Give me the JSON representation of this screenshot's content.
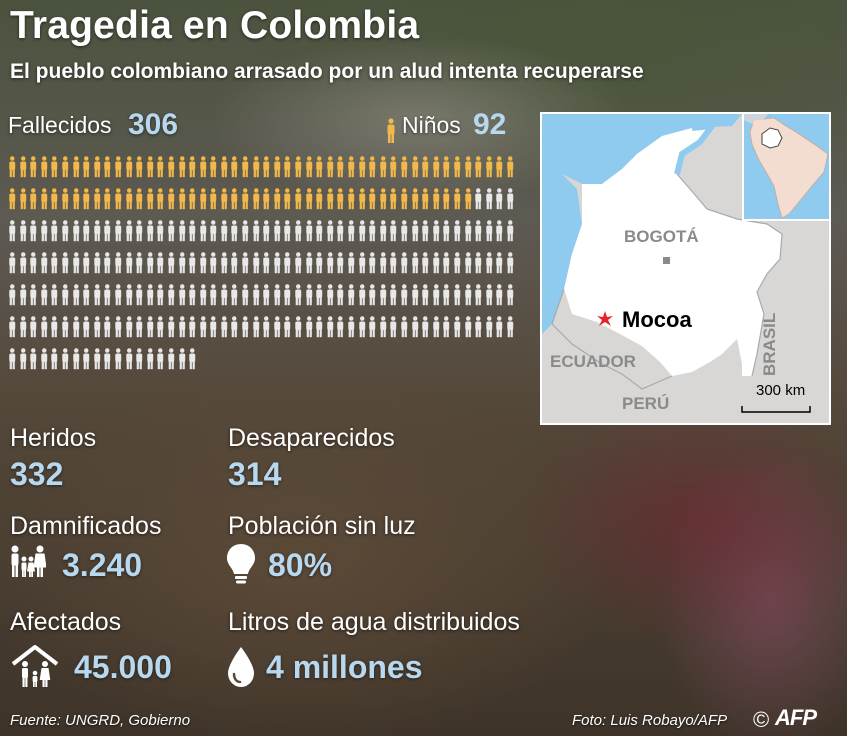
{
  "header": {
    "title": "Tragedia en Colombia",
    "subtitle": "El pueblo colombiano arrasado por un alud intenta recuperarse"
  },
  "deaths": {
    "label": "Fallecidos",
    "value": "306",
    "children_label": "Niños",
    "children_value": "92",
    "total_icons": 306,
    "highlighted_icons": 92,
    "highlight_color": "#f2b84b",
    "base_color": "#e8e8e8"
  },
  "stats": {
    "injured_label": "Heridos",
    "injured_value": "332",
    "missing_label": "Desaparecidos",
    "missing_value": "314",
    "victims_label": "Damnificados",
    "victims_value": "3.240",
    "no_power_label": "Población sin luz",
    "no_power_value": "80%",
    "affected_label": "Afectados",
    "affected_value": "45.000",
    "water_label": "Litros de agua distribuidos",
    "water_value": "4 millones",
    "value_color": "#b7d8ef"
  },
  "map": {
    "capital": "BOGOTÁ",
    "city": "Mocoa",
    "ecuador": "ECUADOR",
    "peru": "PERÚ",
    "brazil": "BRASIL",
    "scale": "300 km",
    "land_color": "#ffffff",
    "neighbor_color": "#d8d7d6",
    "sea_color": "#8fcbee",
    "marker_color": "#e8202a"
  },
  "footer": {
    "source": "Fuente: UNGRD, Gobierno",
    "photo_credit": "Foto: Luis Robayo/AFP",
    "copyright": "©",
    "agency": "AFP"
  }
}
